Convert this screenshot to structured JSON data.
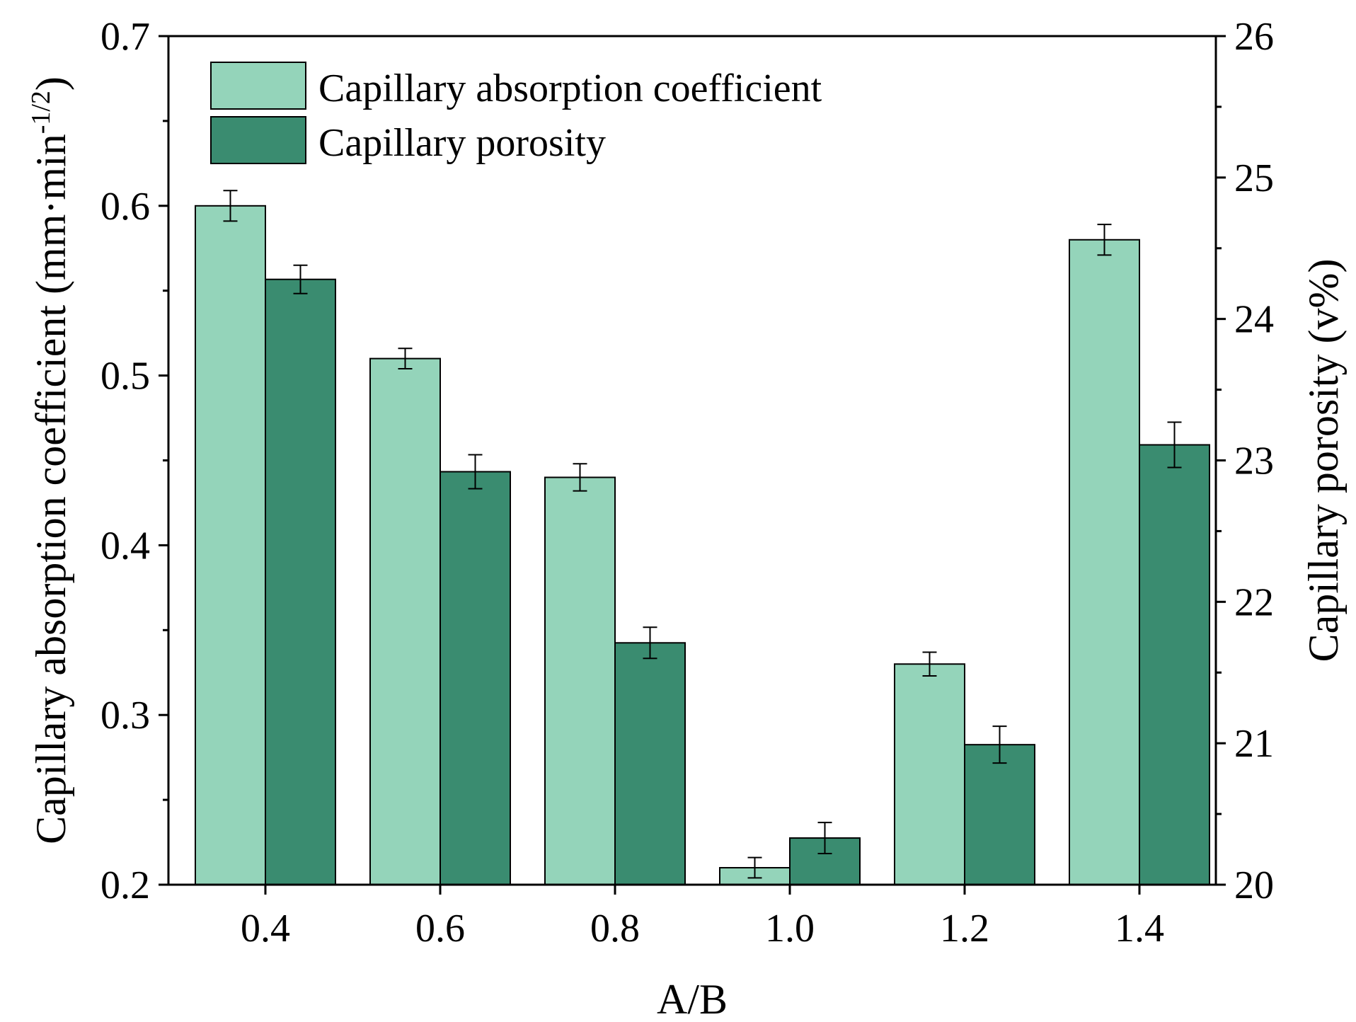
{
  "chart_data": {
    "type": "bar",
    "xlabel": "A/B",
    "categories": [
      "0.4",
      "0.6",
      "0.8",
      "1.0",
      "1.2",
      "1.4"
    ],
    "y_left": {
      "label_main": "Capillary absorption coefficient (mm·min",
      "label_sup": "-1/2",
      "label_close": ")",
      "ylim": [
        0.2,
        0.7
      ],
      "ticks": [
        "0.2",
        "0.3",
        "0.4",
        "0.5",
        "0.6",
        "0.7"
      ]
    },
    "y_right": {
      "label": "Capillary porosity (v%)",
      "ylim": [
        20,
        26
      ],
      "ticks": [
        "20",
        "21",
        "22",
        "23",
        "24",
        "25",
        "26"
      ]
    },
    "series": [
      {
        "name": "Capillary absorption coefficient",
        "axis": "left",
        "color": "#94d4ba",
        "values": [
          0.6,
          0.51,
          0.44,
          0.21,
          0.33,
          0.58
        ],
        "errors": [
          0.009,
          0.006,
          0.008,
          0.006,
          0.007,
          0.009
        ]
      },
      {
        "name": "Capillary porosity",
        "axis": "right",
        "color": "#3a8c70",
        "values": [
          24.28,
          22.92,
          21.71,
          20.33,
          20.99,
          23.11
        ],
        "errors": [
          0.1,
          0.12,
          0.11,
          0.11,
          0.13,
          0.16
        ]
      }
    ]
  }
}
